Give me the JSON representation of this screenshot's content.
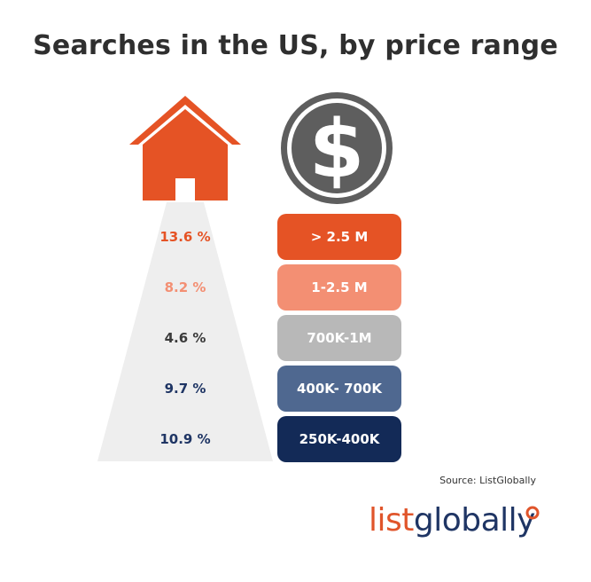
{
  "title": "Searches in the US, by price range",
  "source": "Source: ListGlobally",
  "logo": {
    "part1": "list",
    "part2": "globally"
  },
  "icons": {
    "house": "house-icon",
    "dollar": "dollar-coin-icon",
    "pin": "location-pin-icon"
  },
  "colors": {
    "orange": "#e55325",
    "light_orange": "#f38f73",
    "grey": "#b8b8b8",
    "steel_blue": "#4f6890",
    "navy": "#132a57",
    "dark_text": "#3a3a3a"
  },
  "chart_data": {
    "type": "table",
    "title": "Searches in the US, by price range",
    "rows": [
      {
        "range": "> 2.5 M",
        "value": 13.6,
        "label": "13.6 %",
        "color": "#e55325",
        "text_color": "#e55325"
      },
      {
        "range": "1-2.5 M",
        "value": 8.2,
        "label": "8.2 %",
        "color": "#f38f73",
        "text_color": "#f38f73"
      },
      {
        "range": "700K-1M",
        "value": 4.6,
        "label": "4.6 %",
        "color": "#b8b8b8",
        "text_color": "#3a3a3a"
      },
      {
        "range": "400K- 700K",
        "value": 9.7,
        "label": "9.7 %",
        "color": "#4f6890",
        "text_color": "#1f3564"
      },
      {
        "range": "250K-400K",
        "value": 10.9,
        "label": "10.9 %",
        "color": "#132a57",
        "text_color": "#1f3564"
      }
    ]
  }
}
